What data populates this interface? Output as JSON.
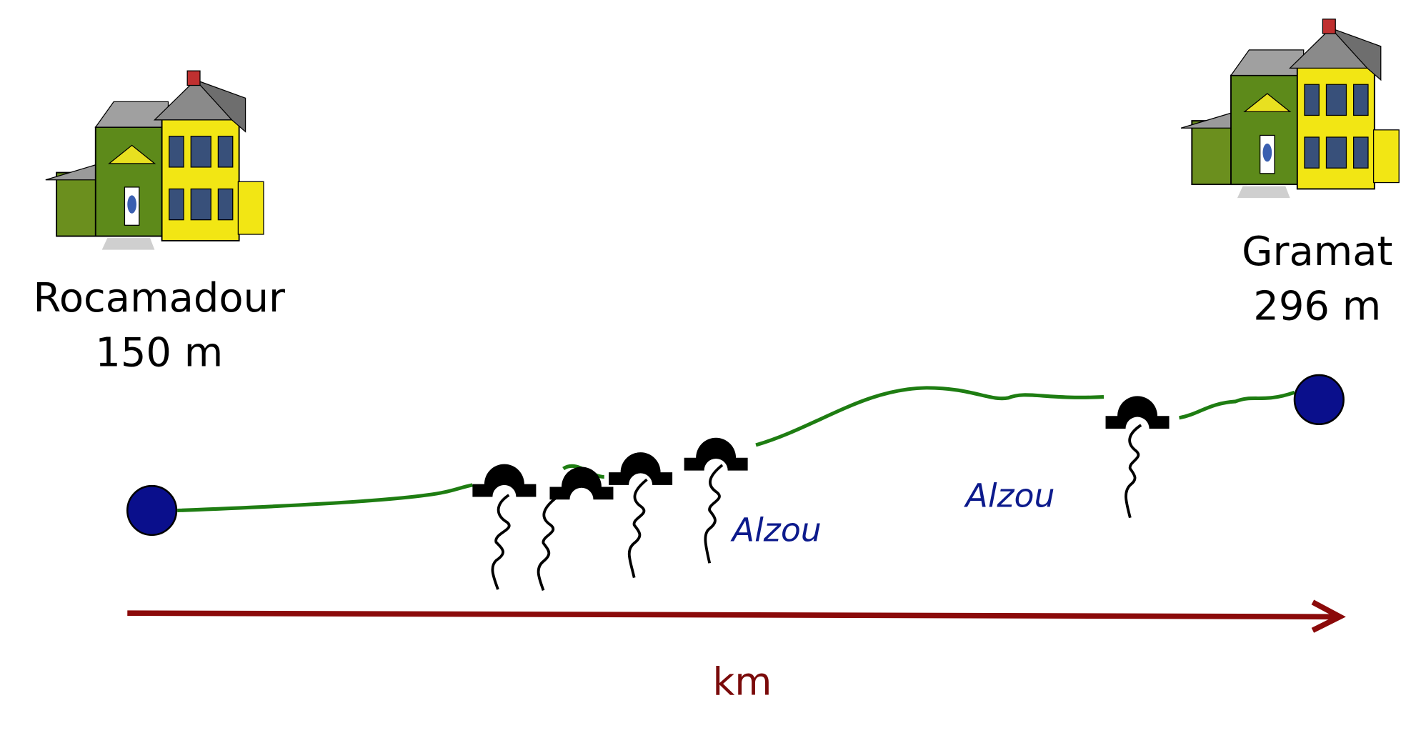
{
  "start": {
    "name": "Rocamadour",
    "elevation": "150 m"
  },
  "end": {
    "name": "Gramat",
    "elevation": "296 m"
  },
  "rivers": [
    {
      "label": "Alzou"
    },
    {
      "label": "Alzou"
    }
  ],
  "axis": {
    "label": "km"
  }
}
